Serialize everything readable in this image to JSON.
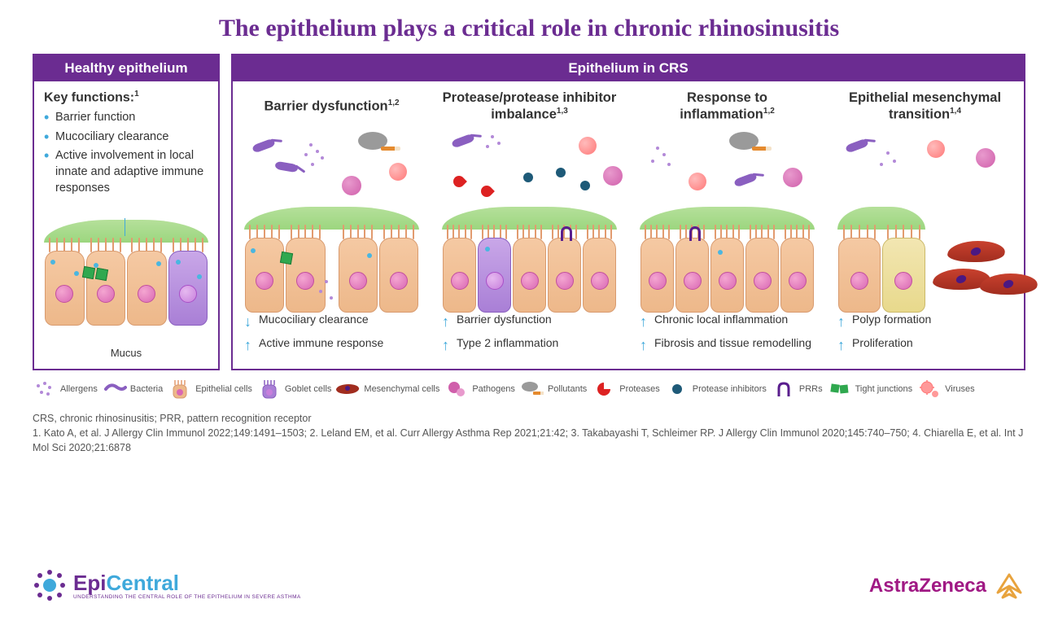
{
  "title": "The epithelium plays a critical role in chronic rhinosinusitis",
  "colors": {
    "accent": "#6b2c91",
    "blue": "#3fa9db",
    "text": "#333",
    "az": "#a01984",
    "mucus": "#9cd67f",
    "cell": "#edb88a",
    "goblet": "#a97fd6",
    "mesen": "#a12d1f",
    "tight": "#2fa84f"
  },
  "healthy": {
    "header": "Healthy epithelium",
    "kf_title": "Key functions:",
    "kf_sup": "1",
    "items": [
      "Barrier function",
      "Mucociliary clearance",
      "Active involvement in local innate and adaptive immune responses"
    ],
    "mucus_label": "Mucus"
  },
  "crs": {
    "header": "Epithelium in CRS",
    "cols": [
      {
        "title": "Barrier dysfunction",
        "sup": "1,2",
        "outcomes": [
          {
            "dir": "down",
            "text": "Mucociliary clearance"
          },
          {
            "dir": "up",
            "text": "Active immune response"
          }
        ]
      },
      {
        "title": "Protease/protease inhibitor imbalance",
        "sup": "1,3",
        "outcomes": [
          {
            "dir": "up",
            "text": "Barrier dysfunction"
          },
          {
            "dir": "up",
            "text": "Type 2 inflammation"
          }
        ]
      },
      {
        "title": "Response to inflammation",
        "sup": "1,2",
        "outcomes": [
          {
            "dir": "up",
            "text": "Chronic local inflammation"
          },
          {
            "dir": "up",
            "text": "Fibrosis and tissue remodelling"
          }
        ]
      },
      {
        "title": "Epithelial mesenchymal transition",
        "sup": "1,4",
        "outcomes": [
          {
            "dir": "up",
            "text": "Polyp formation"
          },
          {
            "dir": "up",
            "text": "Proliferation"
          }
        ]
      }
    ]
  },
  "legend": [
    {
      "label": "Allergens",
      "icon": "allergen"
    },
    {
      "label": "Bacteria",
      "icon": "bact"
    },
    {
      "label": "Epithelial cells",
      "icon": "epicell"
    },
    {
      "label": "Goblet cells",
      "icon": "goblet"
    },
    {
      "label": "Mesenchymal cells",
      "icon": "mesen"
    },
    {
      "label": "Pathogens",
      "icon": "pathogen"
    },
    {
      "label": "Pollutants",
      "icon": "smoke"
    },
    {
      "label": "Proteases",
      "icon": "protease"
    },
    {
      "label": "Protease inhibitors",
      "icon": "pinhib"
    },
    {
      "label": "PRRs",
      "icon": "prr"
    },
    {
      "label": "Tight junctions",
      "icon": "tight"
    },
    {
      "label": "Viruses",
      "icon": "virus"
    }
  ],
  "footer": {
    "abbrev": "CRS, chronic rhinosinusitis; PRR, pattern recognition receptor",
    "refs": "1. Kato A, et al. J Allergy Clin Immunol 2022;149:1491–1503; 2. Leland EM, et al. Curr Allergy Asthma Rep 2021;21:42; 3. Takabayashi T, Schleimer RP. J Allergy Clin Immunol 2020;145:740–750; 4. Chiarella E, et al. Int J Mol Sci 2020;21:6878"
  },
  "logos": {
    "epi_main1": "Epi",
    "epi_main2": "Central",
    "epi_sub": "UNDERSTANDING THE CENTRAL ROLE OF THE EPITHELIUM IN SEVERE ASTHMA",
    "az": "AstraZeneca"
  }
}
